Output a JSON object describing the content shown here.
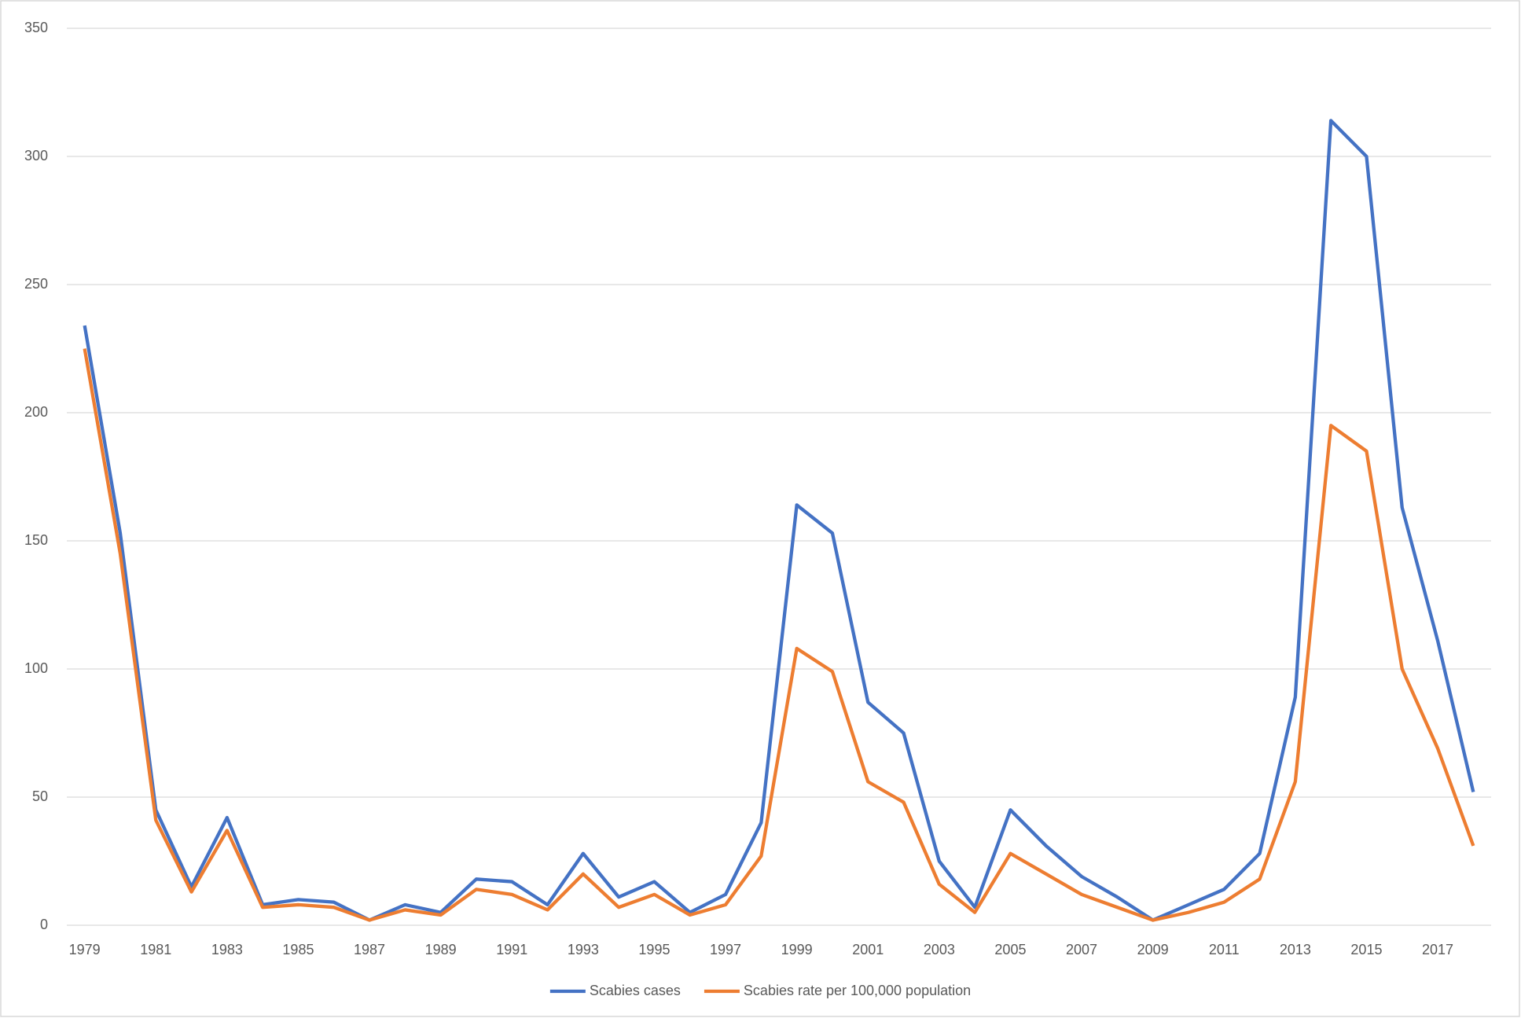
{
  "chart_data": {
    "type": "line",
    "categories": [
      "1979",
      null,
      "1981",
      null,
      "1983",
      null,
      "1985",
      null,
      "1987",
      null,
      "1989",
      null,
      "1991",
      null,
      "1993",
      null,
      "1995",
      null,
      "1997",
      null,
      "1999",
      null,
      "2001",
      null,
      "2003",
      null,
      "2005",
      null,
      "2007",
      null,
      "2009",
      null,
      "2011",
      null,
      "2013",
      null,
      "2015",
      null,
      "2017",
      null
    ],
    "series": [
      {
        "name": "Scabies cases",
        "color": "#4472c4",
        "values": [
          234,
          153,
          45,
          15,
          42,
          8,
          10,
          9,
          2,
          8,
          5,
          18,
          17,
          8,
          28,
          11,
          17,
          5,
          12,
          40,
          164,
          153,
          87,
          75,
          25,
          7,
          45,
          31,
          19,
          11,
          2,
          8,
          14,
          28,
          89,
          314,
          300,
          163,
          111,
          52
        ]
      },
      {
        "name": "Scabies rate per 100,000 population",
        "color": "#ed7d31",
        "values": [
          225,
          145,
          41,
          13,
          37,
          7,
          8,
          7,
          2,
          6,
          4,
          14,
          12,
          6,
          20,
          7,
          12,
          4,
          8,
          27,
          108,
          99,
          56,
          48,
          16,
          5,
          28,
          20,
          12,
          7,
          2,
          5,
          9,
          18,
          56,
          195,
          185,
          100,
          69,
          31
        ]
      }
    ],
    "ylim": [
      0,
      350
    ],
    "yticks": [
      0,
      50,
      100,
      150,
      200,
      250,
      300,
      350
    ],
    "grid": true,
    "legend": "bottom"
  }
}
